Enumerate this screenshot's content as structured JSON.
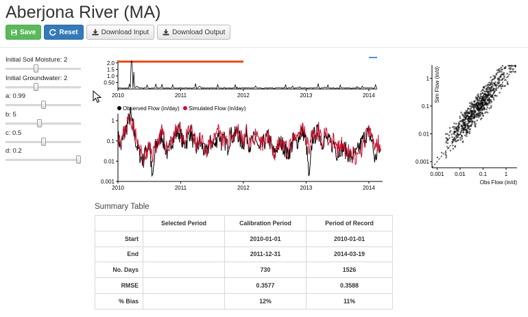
{
  "page": {
    "title": "Aberjona River (MA)"
  },
  "toolbar": {
    "save_label": "Save",
    "reset_label": "Reset",
    "download_input_label": "Download Input",
    "download_output_label": "Download Output"
  },
  "controls": [
    {
      "label": "Initial Soil Moisture: 2",
      "fraction": 0.4
    },
    {
      "label": "Initial Groundwater: 2",
      "fraction": 0.4
    },
    {
      "label": "a: 0.99",
      "fraction": 0.5
    },
    {
      "label": "b: 5",
      "fraction": 0.45
    },
    {
      "label": "c: 0.5",
      "fraction": 0.5
    },
    {
      "label": "d: 0.2",
      "fraction": 1.0
    }
  ],
  "colors": {
    "save": "#5cb85c",
    "reset": "#337ab7",
    "observed": "#000000",
    "simulated": "#c8102e",
    "calibration_bar": "#ee4411",
    "brush_marker": "#4a90d9"
  },
  "icons": {
    "save": "floppy-disk-icon",
    "reset": "refresh-icon",
    "download": "download-icon",
    "cursor": "mouse-pointer-icon"
  },
  "chart_data": [
    {
      "type": "line",
      "role": "overview",
      "x_ticks": [
        "2010",
        "2011",
        "2012",
        "2013",
        "2014"
      ],
      "y_ticks": [
        "2.0",
        "1.5",
        "1.0",
        "0.50"
      ],
      "xlim": [
        "2010-01-01",
        "2014-03-19"
      ],
      "ylim": [
        0,
        2.2
      ],
      "highlight_period": [
        "2010-01-01",
        "2011-12-31"
      ],
      "series": [
        {
          "values_note": "",
          "x": [
            2010.0,
            2010.18,
            2010.22,
            2010.25,
            2010.3,
            2010.8,
            2011.3,
            2011.9,
            2012.2,
            2012.9,
            2013.3,
            2013.6,
            2013.9,
            2014.2
          ],
          "values": [
            0.1,
            0.4,
            2.15,
            1.3,
            0.2,
            0.1,
            0.2,
            0.15,
            0.12,
            0.18,
            0.14,
            0.1,
            0.22,
            0.1
          ]
        }
      ]
    },
    {
      "type": "line",
      "role": "hydrograph",
      "y_scale": "log",
      "x_ticks": [
        "2010",
        "2011",
        "2012",
        "2013",
        "2014"
      ],
      "y_ticks": [
        "1",
        "0.1",
        "0.01",
        "0.001"
      ],
      "xlim": [
        "2010-01-01",
        "2014-03-19"
      ],
      "ylim": [
        0.001,
        2.2
      ],
      "legend_position": "top",
      "series": [
        {
          "name": "Observed Flow (in/day)",
          "color": "#000000",
          "x": [
            2010.0,
            2010.05,
            2010.1,
            2010.15,
            2010.2,
            2010.25,
            2010.3,
            2010.35,
            2010.4,
            2010.45,
            2010.5,
            2010.55,
            2010.6,
            2010.65,
            2010.7,
            2010.75,
            2010.8,
            2010.85,
            2010.9,
            2010.95,
            2011.0,
            2011.05,
            2011.1,
            2011.15,
            2011.2,
            2011.25,
            2011.3,
            2011.35,
            2011.4,
            2011.45,
            2011.5,
            2011.55,
            2011.6,
            2011.65,
            2011.7,
            2011.75,
            2011.8,
            2011.85,
            2011.9,
            2011.95,
            2012.0,
            2012.05,
            2012.1,
            2012.15,
            2012.2,
            2012.25,
            2012.3,
            2012.35,
            2012.4,
            2012.45,
            2012.5,
            2012.55,
            2012.6,
            2012.65,
            2012.7,
            2012.75,
            2012.8,
            2012.85,
            2012.9,
            2012.95,
            2013.0,
            2013.05,
            2013.1,
            2013.15,
            2013.2,
            2013.25,
            2013.3,
            2013.35,
            2013.4,
            2013.45,
            2013.5,
            2013.55,
            2013.6,
            2013.65,
            2013.7,
            2013.75,
            2013.8,
            2013.85,
            2013.9,
            2013.95,
            2014.0,
            2014.05,
            2014.1,
            2014.15,
            2014.2
          ],
          "values": [
            0.15,
            0.05,
            0.2,
            0.6,
            2.0,
            0.3,
            0.06,
            0.02,
            0.01,
            0.03,
            0.08,
            0.001,
            0.05,
            0.1,
            0.2,
            0.05,
            0.02,
            0.1,
            0.15,
            0.3,
            0.2,
            0.06,
            0.1,
            0.3,
            0.1,
            0.04,
            0.08,
            0.05,
            0.02,
            0.06,
            0.1,
            0.05,
            0.3,
            0.08,
            0.1,
            0.05,
            0.2,
            0.15,
            0.3,
            0.1,
            0.08,
            0.2,
            0.06,
            0.1,
            0.15,
            0.03,
            0.06,
            0.1,
            0.15,
            0.05,
            0.02,
            0.06,
            0.08,
            0.05,
            0.02,
            0.04,
            0.1,
            0.08,
            0.2,
            0.3,
            0.1,
            0.001,
            0.15,
            0.2,
            0.3,
            0.08,
            0.15,
            0.1,
            0.06,
            0.08,
            0.02,
            0.05,
            0.04,
            0.03,
            0.015,
            0.02,
            0.02,
            0.05,
            0.1,
            0.2,
            0.25,
            0.1,
            0.01,
            0.05,
            0.02
          ]
        },
        {
          "name": "Simulated Flow (in/day)",
          "color": "#c8102e",
          "x": [
            2010.0,
            2010.05,
            2010.1,
            2010.15,
            2010.2,
            2010.25,
            2010.3,
            2010.35,
            2010.4,
            2010.45,
            2010.5,
            2010.55,
            2010.6,
            2010.65,
            2010.7,
            2010.75,
            2010.8,
            2010.85,
            2010.9,
            2010.95,
            2011.0,
            2011.05,
            2011.1,
            2011.15,
            2011.2,
            2011.25,
            2011.3,
            2011.35,
            2011.4,
            2011.45,
            2011.5,
            2011.55,
            2011.6,
            2011.65,
            2011.7,
            2011.75,
            2011.8,
            2011.85,
            2011.9,
            2011.95,
            2012.0,
            2012.05,
            2012.1,
            2012.15,
            2012.2,
            2012.25,
            2012.3,
            2012.35,
            2012.4,
            2012.45,
            2012.5,
            2012.55,
            2012.6,
            2012.65,
            2012.7,
            2012.75,
            2012.8,
            2012.85,
            2012.9,
            2012.95,
            2013.0,
            2013.05,
            2013.1,
            2013.15,
            2013.2,
            2013.25,
            2013.3,
            2013.35,
            2013.4,
            2013.45,
            2013.5,
            2013.55,
            2013.6,
            2013.65,
            2013.7,
            2013.75,
            2013.8,
            2013.85,
            2013.9,
            2013.95,
            2014.0,
            2014.05,
            2014.1,
            2014.15,
            2014.2
          ],
          "values": [
            0.3,
            0.1,
            0.25,
            0.8,
            1.6,
            0.5,
            0.1,
            0.03,
            0.015,
            0.02,
            0.05,
            0.02,
            0.06,
            0.12,
            0.25,
            0.07,
            0.04,
            0.12,
            0.2,
            0.4,
            0.3,
            0.1,
            0.15,
            0.4,
            0.15,
            0.06,
            0.1,
            0.07,
            0.03,
            0.08,
            0.12,
            0.08,
            0.35,
            0.1,
            0.12,
            0.07,
            0.25,
            0.2,
            0.4,
            0.15,
            0.1,
            0.25,
            0.08,
            0.12,
            0.2,
            0.05,
            0.08,
            0.12,
            0.2,
            0.06,
            0.03,
            0.08,
            0.1,
            0.06,
            0.03,
            0.05,
            0.12,
            0.1,
            0.25,
            0.35,
            0.15,
            0.05,
            0.2,
            0.25,
            0.35,
            0.1,
            0.2,
            0.12,
            0.08,
            0.1,
            0.03,
            0.06,
            0.05,
            0.03,
            0.02,
            0.02,
            0.01,
            0.02,
            0.05,
            0.15,
            0.3,
            0.15,
            0.05,
            0.08,
            0.05
          ]
        }
      ]
    },
    {
      "type": "scatter",
      "role": "obs-vs-sim",
      "xlabel": "Obs Flow (in/d)",
      "ylabel": "Sim Flow (in/d)",
      "x_scale": "log",
      "y_scale": "log",
      "x_ticks": [
        "0.001",
        "0.01",
        "0.1",
        "1"
      ],
      "y_ticks": [
        "1",
        "0.1",
        "0.01",
        "0.001"
      ],
      "xlim": [
        0.0006,
        3
      ],
      "ylim": [
        0.0006,
        3
      ],
      "reference_line": "1:1",
      "point_count": 1526
    }
  ],
  "summary": {
    "title": "Summary Table",
    "columns": [
      "",
      "Selected Period",
      "Calibration Period",
      "Period of Record"
    ],
    "rows": [
      {
        "label": "Start",
        "selected": "",
        "calibration": "2010-01-01",
        "record": "2010-01-01"
      },
      {
        "label": "End",
        "selected": "",
        "calibration": "2011-12-31",
        "record": "2014-03-19"
      },
      {
        "label": "No. Days",
        "selected": "",
        "calibration": "730",
        "record": "1526"
      },
      {
        "label": "RMSE",
        "selected": "",
        "calibration": "0.3577",
        "record": "0.3588"
      },
      {
        "label": "% Bias",
        "selected": "",
        "calibration": "12%",
        "record": "11%"
      }
    ]
  }
}
